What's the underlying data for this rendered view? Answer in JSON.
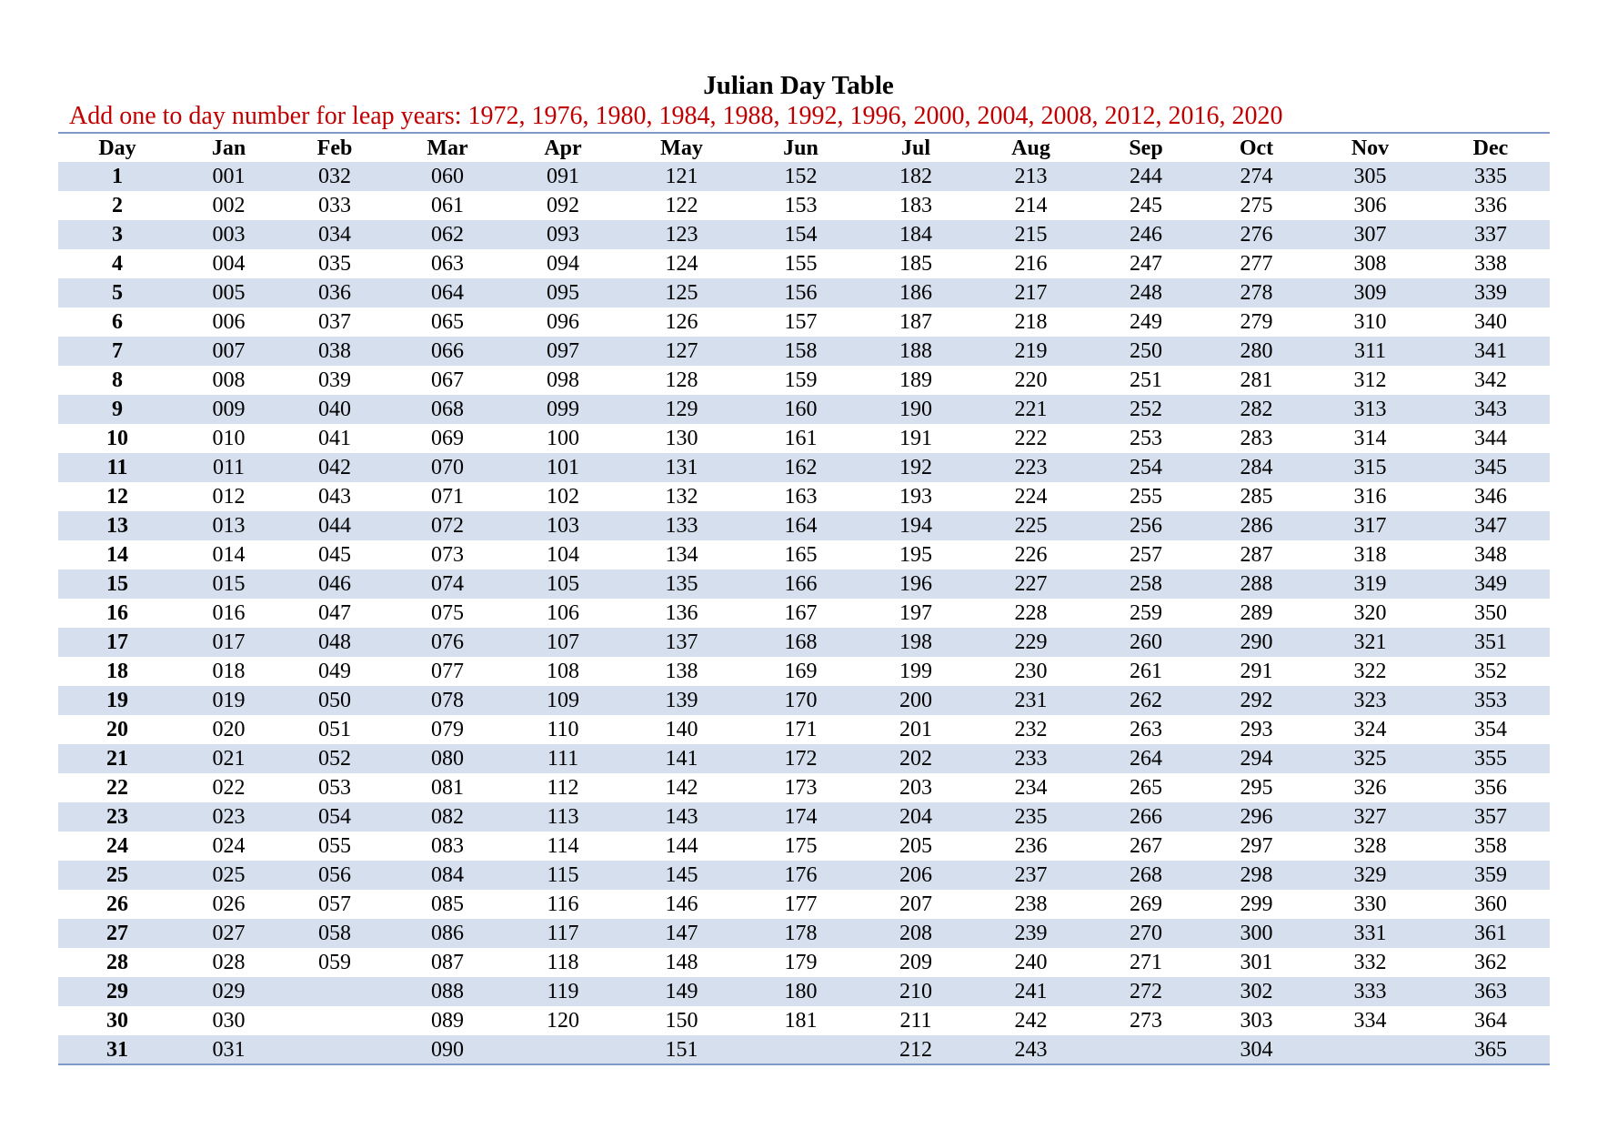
{
  "title": "Julian Day Table",
  "subtitle": "Add one to day number for leap years: 1972, 1976, 1980, 1984, 1988, 1992, 1996, 2000, 2004, 2008, 2012, 2016, 2020",
  "colors": {
    "subtitle": "#c00000",
    "band": "#d5dfed",
    "rule": "#7f9ac6"
  },
  "table": {
    "headers": [
      "Day",
      "Jan",
      "Feb",
      "Mar",
      "Apr",
      "May",
      "Jun",
      "Jul",
      "Aug",
      "Sep",
      "Oct",
      "Nov",
      "Dec"
    ],
    "rows": [
      [
        "1",
        "001",
        "032",
        "060",
        "091",
        "121",
        "152",
        "182",
        "213",
        "244",
        "274",
        "305",
        "335"
      ],
      [
        "2",
        "002",
        "033",
        "061",
        "092",
        "122",
        "153",
        "183",
        "214",
        "245",
        "275",
        "306",
        "336"
      ],
      [
        "3",
        "003",
        "034",
        "062",
        "093",
        "123",
        "154",
        "184",
        "215",
        "246",
        "276",
        "307",
        "337"
      ],
      [
        "4",
        "004",
        "035",
        "063",
        "094",
        "124",
        "155",
        "185",
        "216",
        "247",
        "277",
        "308",
        "338"
      ],
      [
        "5",
        "005",
        "036",
        "064",
        "095",
        "125",
        "156",
        "186",
        "217",
        "248",
        "278",
        "309",
        "339"
      ],
      [
        "6",
        "006",
        "037",
        "065",
        "096",
        "126",
        "157",
        "187",
        "218",
        "249",
        "279",
        "310",
        "340"
      ],
      [
        "7",
        "007",
        "038",
        "066",
        "097",
        "127",
        "158",
        "188",
        "219",
        "250",
        "280",
        "311",
        "341"
      ],
      [
        "8",
        "008",
        "039",
        "067",
        "098",
        "128",
        "159",
        "189",
        "220",
        "251",
        "281",
        "312",
        "342"
      ],
      [
        "9",
        "009",
        "040",
        "068",
        "099",
        "129",
        "160",
        "190",
        "221",
        "252",
        "282",
        "313",
        "343"
      ],
      [
        "10",
        "010",
        "041",
        "069",
        "100",
        "130",
        "161",
        "191",
        "222",
        "253",
        "283",
        "314",
        "344"
      ],
      [
        "11",
        "011",
        "042",
        "070",
        "101",
        "131",
        "162",
        "192",
        "223",
        "254",
        "284",
        "315",
        "345"
      ],
      [
        "12",
        "012",
        "043",
        "071",
        "102",
        "132",
        "163",
        "193",
        "224",
        "255",
        "285",
        "316",
        "346"
      ],
      [
        "13",
        "013",
        "044",
        "072",
        "103",
        "133",
        "164",
        "194",
        "225",
        "256",
        "286",
        "317",
        "347"
      ],
      [
        "14",
        "014",
        "045",
        "073",
        "104",
        "134",
        "165",
        "195",
        "226",
        "257",
        "287",
        "318",
        "348"
      ],
      [
        "15",
        "015",
        "046",
        "074",
        "105",
        "135",
        "166",
        "196",
        "227",
        "258",
        "288",
        "319",
        "349"
      ],
      [
        "16",
        "016",
        "047",
        "075",
        "106",
        "136",
        "167",
        "197",
        "228",
        "259",
        "289",
        "320",
        "350"
      ],
      [
        "17",
        "017",
        "048",
        "076",
        "107",
        "137",
        "168",
        "198",
        "229",
        "260",
        "290",
        "321",
        "351"
      ],
      [
        "18",
        "018",
        "049",
        "077",
        "108",
        "138",
        "169",
        "199",
        "230",
        "261",
        "291",
        "322",
        "352"
      ],
      [
        "19",
        "019",
        "050",
        "078",
        "109",
        "139",
        "170",
        "200",
        "231",
        "262",
        "292",
        "323",
        "353"
      ],
      [
        "20",
        "020",
        "051",
        "079",
        "110",
        "140",
        "171",
        "201",
        "232",
        "263",
        "293",
        "324",
        "354"
      ],
      [
        "21",
        "021",
        "052",
        "080",
        "111",
        "141",
        "172",
        "202",
        "233",
        "264",
        "294",
        "325",
        "355"
      ],
      [
        "22",
        "022",
        "053",
        "081",
        "112",
        "142",
        "173",
        "203",
        "234",
        "265",
        "295",
        "326",
        "356"
      ],
      [
        "23",
        "023",
        "054",
        "082",
        "113",
        "143",
        "174",
        "204",
        "235",
        "266",
        "296",
        "327",
        "357"
      ],
      [
        "24",
        "024",
        "055",
        "083",
        "114",
        "144",
        "175",
        "205",
        "236",
        "267",
        "297",
        "328",
        "358"
      ],
      [
        "25",
        "025",
        "056",
        "084",
        "115",
        "145",
        "176",
        "206",
        "237",
        "268",
        "298",
        "329",
        "359"
      ],
      [
        "26",
        "026",
        "057",
        "085",
        "116",
        "146",
        "177",
        "207",
        "238",
        "269",
        "299",
        "330",
        "360"
      ],
      [
        "27",
        "027",
        "058",
        "086",
        "117",
        "147",
        "178",
        "208",
        "239",
        "270",
        "300",
        "331",
        "361"
      ],
      [
        "28",
        "028",
        "059",
        "087",
        "118",
        "148",
        "179",
        "209",
        "240",
        "271",
        "301",
        "332",
        "362"
      ],
      [
        "29",
        "029",
        "",
        "088",
        "119",
        "149",
        "180",
        "210",
        "241",
        "272",
        "302",
        "333",
        "363"
      ],
      [
        "30",
        "030",
        "",
        "089",
        "120",
        "150",
        "181",
        "211",
        "242",
        "273",
        "303",
        "334",
        "364"
      ],
      [
        "31",
        "031",
        "",
        "090",
        "",
        "151",
        "",
        "212",
        "243",
        "",
        "304",
        "",
        "365"
      ]
    ]
  }
}
